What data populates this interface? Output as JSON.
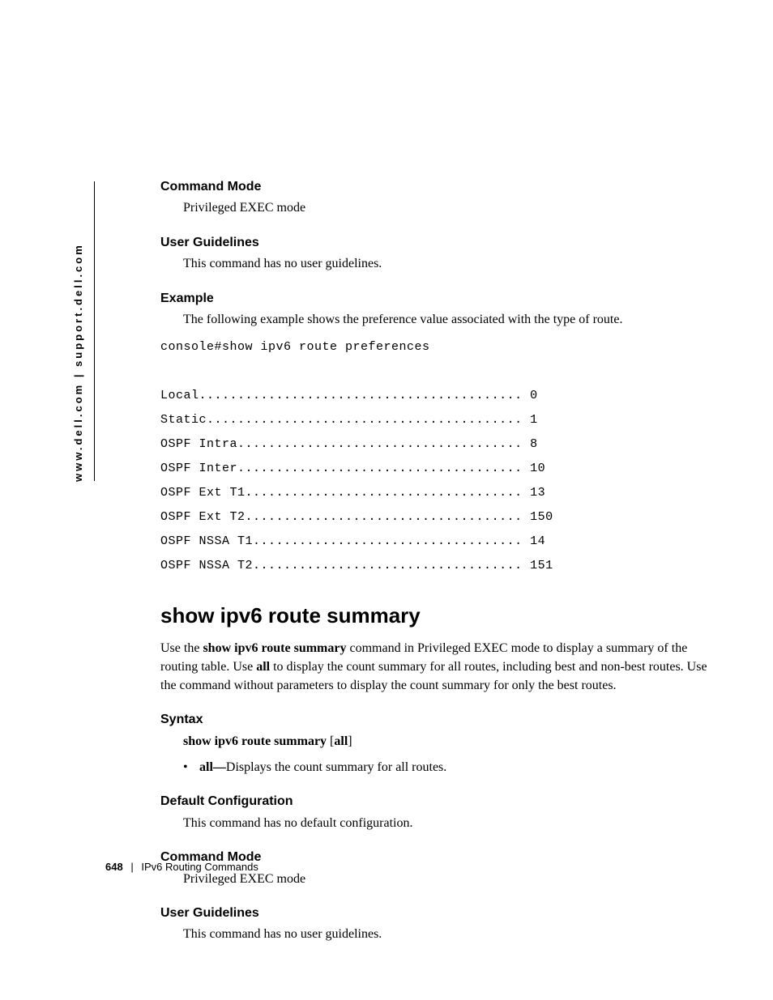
{
  "side_url": "www.dell.com | support.dell.com",
  "sec1": {
    "heading": "Command Mode",
    "body": "Privileged EXEC mode"
  },
  "sec2": {
    "heading": "User Guidelines",
    "body": "This command has no user guidelines."
  },
  "sec3": {
    "heading": "Example",
    "body": "The following example shows the preference value associated with the type of route."
  },
  "code": "console#show ipv6 route preferences\n\nLocal.......................................... 0\nStatic......................................... 1\nOSPF Intra..................................... 8\nOSPF Inter..................................... 10\nOSPF Ext T1.................................... 13\nOSPF Ext T2.................................... 150\nOSPF NSSA T1................................... 14\nOSPF NSSA T2................................... 151",
  "main_heading": "show ipv6 route summary",
  "intro": {
    "pre": "Use the ",
    "cmd": "show ipv6 route summary",
    "mid1": " command in Privileged EXEC mode to display a summary of the routing table. Use ",
    "all1": "all",
    "mid2": " to display the count summary for all routes, including best and non-best routes. Use the command without parameters to display the count summary for only the best routes."
  },
  "syntax": {
    "heading": "Syntax",
    "line_cmd": "show ipv6 route summary",
    "line_opt": " [",
    "line_all": "all",
    "line_close": "]",
    "bullet_term": "all—",
    "bullet_desc": "Displays the count summary for all routes."
  },
  "sec4": {
    "heading": "Default Configuration",
    "body": "This command has no default configuration."
  },
  "sec5": {
    "heading": "Command Mode",
    "body": "Privileged EXEC mode"
  },
  "sec6": {
    "heading": "User Guidelines",
    "body": "This command has no user guidelines."
  },
  "footer": {
    "page": "648",
    "separator": "|",
    "title": "IPv6 Routing Commands"
  }
}
